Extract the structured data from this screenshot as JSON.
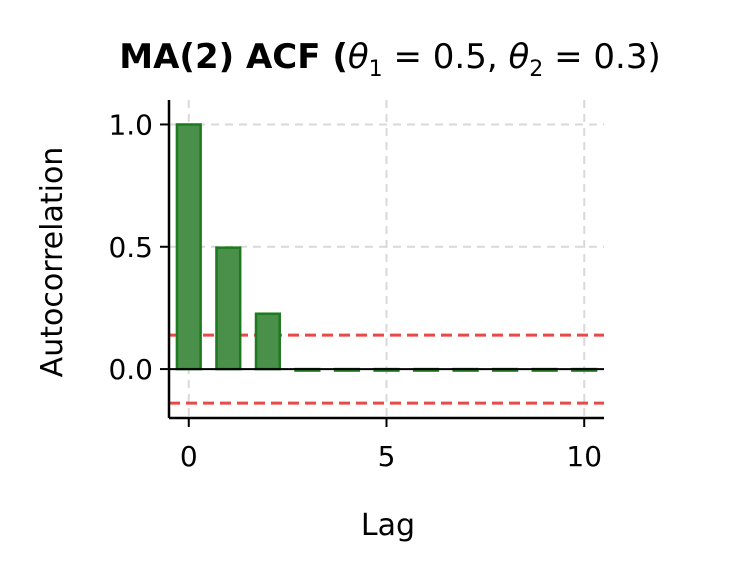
{
  "chart_data": {
    "type": "bar",
    "title_main": "MA(2) ACF (",
    "title_theta1": "θ",
    "title_sub1": "1",
    "title_eq1": " = 0.5, ",
    "title_theta2": "θ",
    "title_sub2": "2",
    "title_eq2": " = 0.3)",
    "xlabel": "Lag",
    "ylabel": "Autocorrelation",
    "x": [
      0,
      1,
      2,
      3,
      4,
      5,
      6,
      7,
      8,
      9,
      10
    ],
    "values": [
      1.0,
      0.4964,
      0.2263,
      0,
      0,
      0,
      0,
      0,
      0,
      0,
      0
    ],
    "xlim": [
      -0.5,
      10.5
    ],
    "ylim": [
      -0.2,
      1.1
    ],
    "xticks": [
      0,
      5,
      10
    ],
    "xtick_labels": [
      "0",
      "5",
      "10"
    ],
    "yticks": [
      0.0,
      0.5,
      1.0
    ],
    "ytick_labels": [
      "0.0",
      "0.5",
      "1.0"
    ],
    "confidence_band": [
      0.139,
      -0.139
    ],
    "grid": true,
    "colors": {
      "bar_fill": "#4a8f4a",
      "bar_edge": "#1e7a1e",
      "confidence_line": "#e84a4a",
      "grid": "#d9d9d9",
      "zero_line": "#000000"
    }
  }
}
